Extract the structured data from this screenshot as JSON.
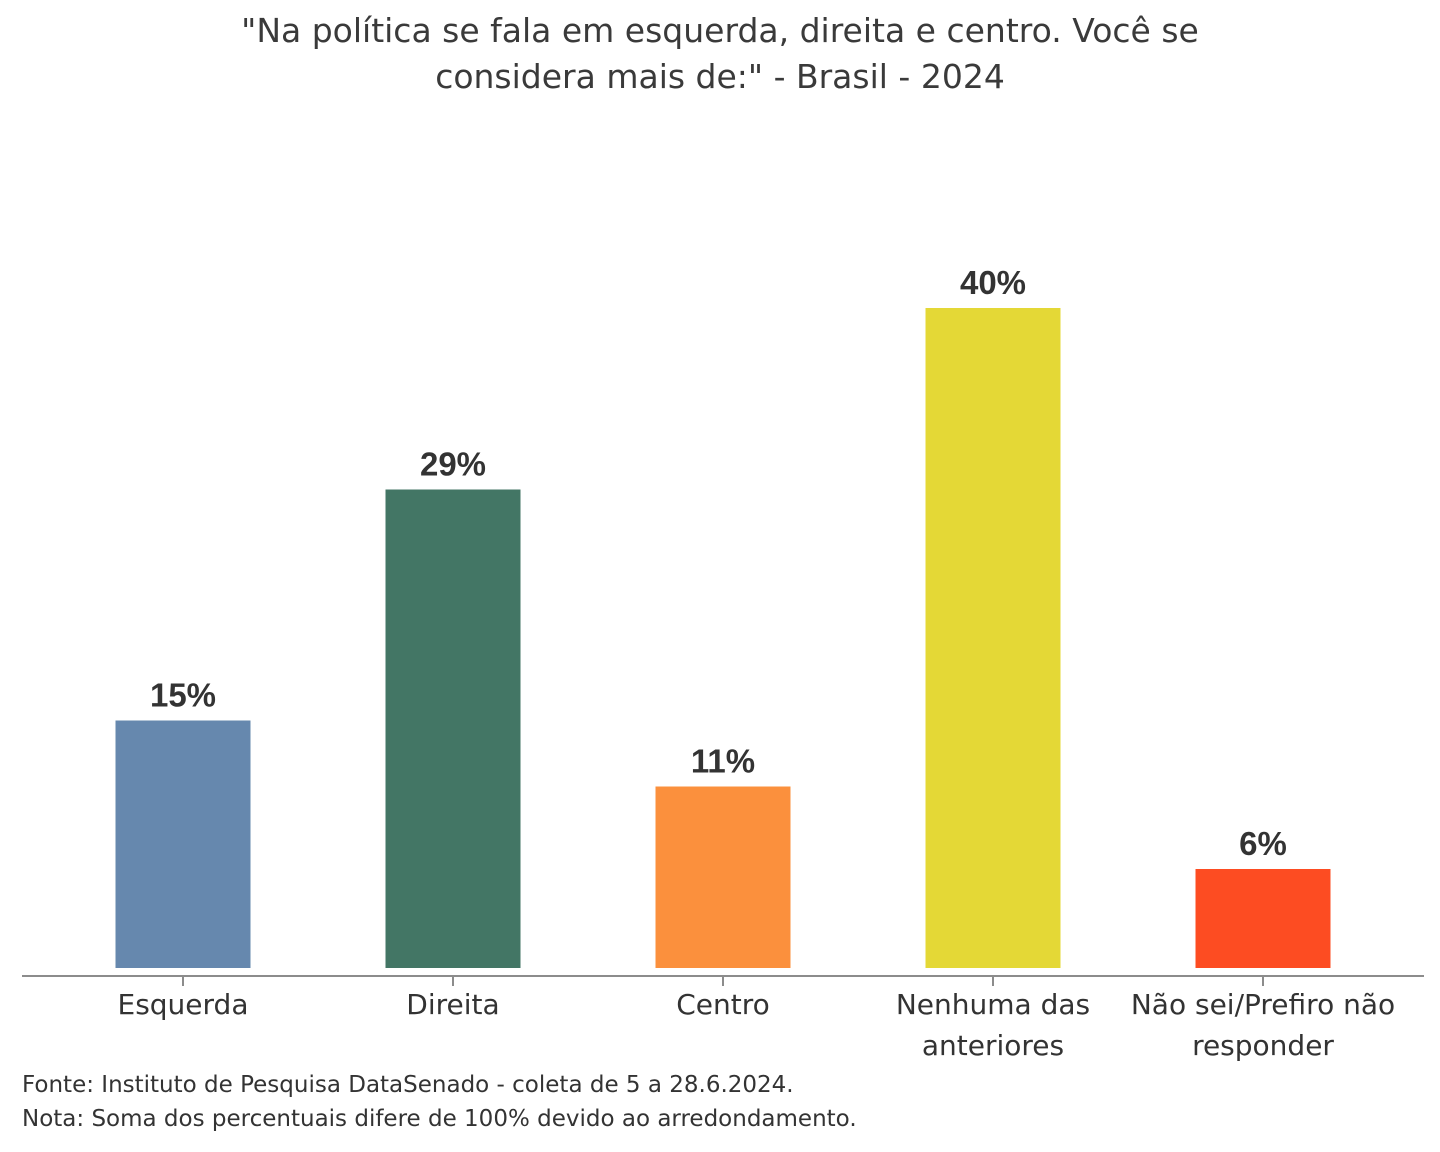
{
  "title_lines": [
    "\"Na política se fala em esquerda, direita e centro. Você se",
    "considera mais de:\" - Brasil - 2024"
  ],
  "chart_data": {
    "type": "bar",
    "title": "\"Na política se fala em esquerda, direita e centro. Você se considera mais de:\" - Brasil - 2024",
    "categories": [
      "Esquerda",
      "Direita",
      "Centro",
      "Nenhuma das anteriores",
      "Não sei/Prefiro não responder"
    ],
    "category_lines": [
      [
        "Esquerda"
      ],
      [
        "Direita"
      ],
      [
        "Centro"
      ],
      [
        "Nenhuma das",
        "anteriores"
      ],
      [
        "Não sei/Prefiro não",
        "responder"
      ]
    ],
    "values": [
      15,
      29,
      11,
      40,
      6
    ],
    "data_labels": [
      "15%",
      "29%",
      "11%",
      "40%",
      "6%"
    ],
    "colors": [
      "#6688ae",
      "#437665",
      "#fb903d",
      "#e4d836",
      "#fd4c22"
    ],
    "ylim": [
      0,
      44
    ],
    "xlabel": "",
    "ylabel": "",
    "grid": false,
    "legend": "none"
  },
  "footnotes": {
    "source": "Fonte: Instituto de Pesquisa DataSenado - coleta de 5 a 28.6.2024.",
    "note": "Nota: Soma dos percentuais difere de 100% devido ao arredondamento."
  }
}
